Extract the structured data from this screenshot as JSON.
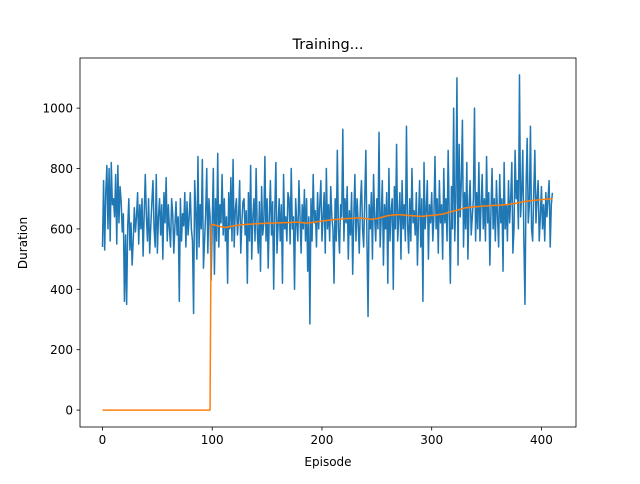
{
  "chart_data": {
    "type": "line",
    "title": "Training...",
    "x_label": "Episode",
    "y_label": "Duration",
    "xlim": [
      -20.5,
      431.5
    ],
    "ylim": [
      -56,
      1166
    ],
    "xticks": [
      0,
      100,
      200,
      300,
      400
    ],
    "yticks": [
      0,
      200,
      400,
      600,
      800,
      1000
    ],
    "x": [
      0,
      1,
      2,
      3,
      4,
      5,
      6,
      7,
      8,
      9,
      10,
      11,
      12,
      13,
      14,
      15,
      16,
      17,
      18,
      19,
      20,
      21,
      22,
      23,
      24,
      25,
      26,
      27,
      28,
      29,
      30,
      31,
      32,
      33,
      34,
      35,
      36,
      37,
      38,
      39,
      40,
      41,
      42,
      43,
      44,
      45,
      46,
      47,
      48,
      49,
      50,
      51,
      52,
      53,
      54,
      55,
      56,
      57,
      58,
      59,
      60,
      61,
      62,
      63,
      64,
      65,
      66,
      67,
      68,
      69,
      70,
      71,
      72,
      73,
      74,
      75,
      76,
      77,
      78,
      79,
      80,
      81,
      82,
      83,
      84,
      85,
      86,
      87,
      88,
      89,
      90,
      91,
      92,
      93,
      94,
      95,
      96,
      97,
      98,
      99,
      100,
      101,
      102,
      103,
      104,
      105,
      106,
      107,
      108,
      109,
      110,
      111,
      112,
      113,
      114,
      115,
      116,
      117,
      118,
      119,
      120,
      121,
      122,
      123,
      124,
      125,
      126,
      127,
      128,
      129,
      130,
      131,
      132,
      133,
      134,
      135,
      136,
      137,
      138,
      139,
      140,
      141,
      142,
      143,
      144,
      145,
      146,
      147,
      148,
      149,
      150,
      151,
      152,
      153,
      154,
      155,
      156,
      157,
      158,
      159,
      160,
      161,
      162,
      163,
      164,
      165,
      166,
      167,
      168,
      169,
      170,
      171,
      172,
      173,
      174,
      175,
      176,
      177,
      178,
      179,
      180,
      181,
      182,
      183,
      184,
      185,
      186,
      187,
      188,
      189,
      190,
      191,
      192,
      193,
      194,
      195,
      196,
      197,
      198,
      199,
      200,
      201,
      202,
      203,
      204,
      205,
      206,
      207,
      208,
      209,
      210,
      211,
      212,
      213,
      214,
      215,
      216,
      217,
      218,
      219,
      220,
      221,
      222,
      223,
      224,
      225,
      226,
      227,
      228,
      229,
      230,
      231,
      232,
      233,
      234,
      235,
      236,
      237,
      238,
      239,
      240,
      241,
      242,
      243,
      244,
      245,
      246,
      247,
      248,
      249,
      250,
      251,
      252,
      253,
      254,
      255,
      256,
      257,
      258,
      259,
      260,
      261,
      262,
      263,
      264,
      265,
      266,
      267,
      268,
      269,
      270,
      271,
      272,
      273,
      274,
      275,
      276,
      277,
      278,
      279,
      280,
      281,
      282,
      283,
      284,
      285,
      286,
      287,
      288,
      289,
      290,
      291,
      292,
      293,
      294,
      295,
      296,
      297,
      298,
      299,
      300,
      301,
      302,
      303,
      304,
      305,
      306,
      307,
      308,
      309,
      310,
      311,
      312,
      313,
      314,
      315,
      316,
      317,
      318,
      319,
      320,
      321,
      322,
      323,
      324,
      325,
      326,
      327,
      328,
      329,
      330,
      331,
      332,
      333,
      334,
      335,
      336,
      337,
      338,
      339,
      340,
      341,
      342,
      343,
      344,
      345,
      346,
      347,
      348,
      349,
      350,
      351,
      352,
      353,
      354,
      355,
      356,
      357,
      358,
      359,
      360,
      361,
      362,
      363,
      364,
      365,
      366,
      367,
      368,
      369,
      370,
      371,
      372,
      373,
      374,
      375,
      376,
      377,
      378,
      379,
      380,
      381,
      382,
      383,
      384,
      385,
      386,
      387,
      388,
      389,
      390,
      391,
      392,
      393,
      394,
      395,
      396,
      397,
      398,
      399,
      400,
      401,
      402,
      403,
      404,
      405,
      406,
      407,
      408,
      409,
      410
    ],
    "series": [
      {
        "color": "#1f77b4",
        "values": [
          540,
          760,
          530,
          720,
          810,
          600,
          800,
          560,
          820,
          680,
          700,
          640,
          780,
          550,
          810,
          620,
          740,
          690,
          590,
          650,
          360,
          580,
          350,
          610,
          700,
          530,
          620,
          480,
          560,
          670,
          590,
          640,
          720,
          550,
          680,
          600,
          700,
          510,
          650,
          780,
          640,
          560,
          700,
          520,
          610,
          690,
          760,
          600,
          540,
          780,
          520,
          640,
          700,
          580,
          680,
          500,
          720,
          620,
          770,
          560,
          680,
          600,
          540,
          700,
          650,
          520,
          610,
          690,
          580,
          640,
          360,
          700,
          560,
          650,
          610,
          720,
          540,
          690,
          580,
          640,
          720,
          600,
          560,
          320,
          760,
          660,
          500,
          840,
          540,
          680,
          600,
          830,
          470,
          560,
          650,
          800,
          520,
          700,
          640,
          430,
          620,
          800,
          450,
          700,
          560,
          850,
          540,
          680,
          620,
          780,
          580,
          700,
          560,
          640,
          420,
          720,
          600,
          770,
          560,
          830,
          540,
          660,
          700,
          580,
          640,
          760,
          520,
          620,
          690,
          700,
          580,
          660,
          420,
          720,
          560,
          810,
          500,
          640,
          700,
          560,
          800,
          600,
          520,
          690,
          460,
          740,
          580,
          620,
          840,
          560,
          700,
          470,
          640,
          760,
          580,
          690,
          400,
          660,
          820,
          520,
          610,
          700,
          560,
          680,
          420,
          780,
          600,
          640,
          560,
          720,
          700,
          550,
          800,
          600,
          640,
          400,
          700,
          620,
          560,
          760,
          640,
          520,
          680,
          600,
          730,
          560,
          700,
          460,
          640,
          285,
          700,
          560,
          780,
          620,
          660,
          540,
          720,
          600,
          680,
          760,
          560,
          640,
          720,
          520,
          800,
          600,
          680,
          560,
          740,
          640,
          600,
          420,
          700,
          560,
          860,
          600,
          520,
          680,
          640,
          930,
          560,
          700,
          620,
          740,
          500,
          660,
          580,
          720,
          450,
          640,
          780,
          560,
          700,
          620,
          520,
          680,
          760,
          600,
          540,
          700,
          860,
          560,
          310,
          680,
          600,
          720,
          500,
          780,
          640,
          560,
          700,
          600,
          920,
          540,
          640,
          760,
          480,
          680,
          600,
          720,
          420,
          800,
          560,
          660,
          700,
          400,
          740,
          600,
          880,
          560,
          640,
          720,
          500,
          760,
          600,
          680,
          560,
          940,
          620,
          520,
          700,
          560,
          800,
          620,
          660,
          580,
          720,
          480,
          640,
          760,
          540,
          700,
          360,
          820,
          600,
          660,
          760,
          500,
          680,
          620,
          720,
          560,
          640,
          840,
          600,
          700,
          520,
          760,
          620,
          680,
          500,
          800,
          620,
          700,
          560,
          860,
          640,
          420,
          740,
          600,
          1000,
          560,
          700,
          1100,
          480,
          880,
          640,
          760,
          960,
          540,
          720,
          600,
          820,
          500,
          680,
          760,
          580,
          640,
          700,
          1000,
          560,
          720,
          600,
          820,
          560,
          680,
          780,
          600,
          700,
          560,
          840,
          620,
          720,
          480,
          660,
          800,
          600,
          700,
          560,
          760,
          640,
          540,
          780,
          620,
          700,
          460,
          820,
          600,
          680,
          560,
          760,
          620,
          700,
          820,
          520,
          600,
          860,
          700,
          760,
          600,
          1110,
          640,
          720,
          860,
          560,
          350,
          740,
          900,
          620,
          680,
          940,
          600,
          560,
          720,
          860,
          620,
          700,
          760,
          560,
          640,
          740,
          600,
          680,
          560,
          720,
          640,
          700,
          760,
          540,
          680,
          720
        ]
      },
      {
        "color": "#ff7f0e",
        "values": [
          0,
          0,
          0,
          0,
          0,
          0,
          0,
          0,
          0,
          0,
          0,
          0,
          0,
          0,
          0,
          0,
          0,
          0,
          0,
          0,
          0,
          0,
          0,
          0,
          0,
          0,
          0,
          0,
          0,
          0,
          0,
          0,
          0,
          0,
          0,
          0,
          0,
          0,
          0,
          0,
          0,
          0,
          0,
          0,
          0,
          0,
          0,
          0,
          0,
          0,
          0,
          0,
          0,
          0,
          0,
          0,
          0,
          0,
          0,
          0,
          0,
          0,
          0,
          0,
          0,
          0,
          0,
          0,
          0,
          0,
          0,
          0,
          0,
          0,
          0,
          0,
          0,
          0,
          0,
          0,
          0,
          0,
          0,
          0,
          0,
          0,
          0,
          0,
          0,
          0,
          0,
          0,
          0,
          0,
          0,
          0,
          0,
          0,
          0,
          615,
          614,
          614,
          613,
          612,
          611,
          610,
          609,
          608,
          607,
          606,
          606,
          605,
          605,
          605,
          606,
          607,
          608,
          608,
          609,
          610,
          610,
          611,
          611,
          612,
          612,
          613,
          613,
          614,
          614,
          614,
          615,
          615,
          615,
          615,
          616,
          616,
          616,
          616,
          617,
          617,
          617,
          617,
          617,
          618,
          618,
          618,
          618,
          618,
          618,
          619,
          619,
          619,
          619,
          619,
          619,
          619,
          620,
          620,
          620,
          620,
          620,
          620,
          620,
          620,
          621,
          621,
          621,
          621,
          621,
          621,
          621,
          621,
          621,
          622,
          622,
          622,
          622,
          622,
          622,
          622,
          622,
          621,
          621,
          620,
          620,
          619,
          619,
          619,
          620,
          620,
          621,
          621,
          622,
          622,
          623,
          623,
          624,
          624,
          625,
          625,
          626,
          626,
          627,
          627,
          628,
          628,
          629,
          629,
          630,
          630,
          630,
          631,
          631,
          631,
          632,
          632,
          632,
          633,
          633,
          633,
          633,
          634,
          634,
          634,
          634,
          635,
          635,
          635,
          635,
          635,
          636,
          636,
          636,
          636,
          636,
          636,
          635,
          635,
          635,
          634,
          634,
          634,
          633,
          633,
          632,
          632,
          632,
          633,
          633,
          634,
          634,
          635,
          636,
          637,
          638,
          639,
          640,
          641,
          642,
          643,
          644,
          644,
          645,
          645,
          646,
          646,
          646,
          647,
          647,
          647,
          647,
          647,
          647,
          646,
          646,
          646,
          645,
          645,
          645,
          644,
          644,
          644,
          644,
          643,
          643,
          643,
          643,
          642,
          642,
          642,
          642,
          642,
          642,
          642,
          643,
          643,
          643,
          644,
          644,
          644,
          645,
          645,
          646,
          646,
          646,
          647,
          647,
          648,
          648,
          649,
          649,
          650,
          651,
          652,
          653,
          654,
          655,
          656,
          657,
          658,
          659,
          660,
          661,
          662,
          663,
          664,
          665,
          666,
          667,
          668,
          669,
          670,
          670,
          671,
          671,
          672,
          672,
          672,
          673,
          673,
          673,
          674,
          674,
          674,
          675,
          675,
          675,
          676,
          676,
          676,
          676,
          676,
          677,
          677,
          677,
          677,
          678,
          678,
          678,
          678,
          678,
          678,
          679,
          679,
          679,
          679,
          680,
          680,
          680,
          681,
          681,
          682,
          682,
          683,
          683,
          684,
          684,
          685,
          685,
          686,
          687,
          688,
          689,
          690,
          690,
          691,
          691,
          692,
          692,
          693,
          693,
          694,
          694,
          695,
          695,
          695,
          696,
          696,
          696,
          697,
          697,
          697,
          698,
          698,
          698,
          699,
          699,
          699,
          700,
          700,
          700
        ]
      }
    ]
  }
}
